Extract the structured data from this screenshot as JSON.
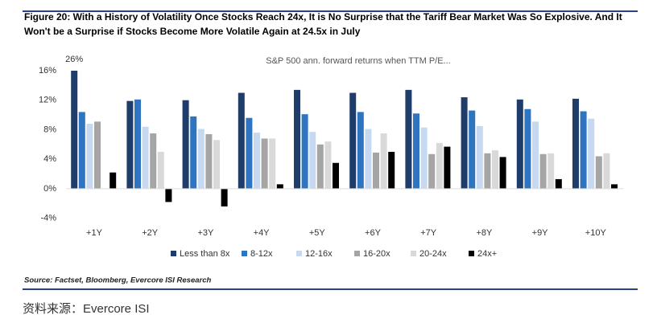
{
  "chart_data": {
    "type": "bar",
    "title": "Figure 20:  With a History of Volatility Once Stocks Reach 24x, It is No Surprise that the Tariff Bear Market Was So Explosive. And It",
    "title_line2": "Won't be a Surprise if Stocks Become More Volatile Again at 24.5x in July",
    "subtitle": "S&P 500 ann. forward returns when TTM P/E...",
    "source": "Source: Factset, Bloomberg, Evercore ISI Research",
    "caption": "资料来源：Evercore ISI",
    "categories": [
      "+1Y",
      "+2Y",
      "+3Y",
      "+4Y",
      "+5Y",
      "+6Y",
      "+7Y",
      "+8Y",
      "+9Y",
      "+10Y"
    ],
    "series": [
      {
        "name": "Less than 8x",
        "color": "#1f3d6b",
        "values": [
          26,
          11.9,
          12.0,
          13.0,
          13.4,
          13.0,
          13.4,
          12.4,
          12.1,
          12.2
        ],
        "value_labels": [
          "26%",
          null,
          null,
          null,
          null,
          null,
          null,
          null,
          null,
          null
        ]
      },
      {
        "name": "8-12x",
        "color": "#2f74c0",
        "values": [
          10.4,
          12.1,
          9.8,
          9.6,
          10.1,
          10.4,
          10.2,
          10.6,
          10.8,
          10.5
        ]
      },
      {
        "name": "12-16x",
        "color": "#c6d9f0",
        "values": [
          8.8,
          8.4,
          8.1,
          7.6,
          7.7,
          8.1,
          8.3,
          8.5,
          9.1,
          9.5
        ]
      },
      {
        "name": "16-20x",
        "color": "#a5a5a5",
        "values": [
          9.1,
          7.5,
          7.4,
          6.8,
          6.0,
          4.9,
          4.7,
          4.8,
          4.7,
          4.4
        ]
      },
      {
        "name": "20-24x",
        "color": "#d9d9d9",
        "values": [
          null,
          5.0,
          6.6,
          6.8,
          6.4,
          7.5,
          6.2,
          5.2,
          4.8,
          4.8
        ]
      },
      {
        "name": "24x+",
        "color": "#000000",
        "values": [
          2.2,
          -1.8,
          -2.4,
          0.6,
          3.5,
          5.0,
          5.7,
          4.3,
          1.3,
          0.6
        ]
      }
    ],
    "ylim": [
      -4,
      16
    ],
    "yticks": [
      {
        "value": -4,
        "label": "-4%"
      },
      {
        "value": 0,
        "label": "0%"
      },
      {
        "value": 4,
        "label": "4%"
      },
      {
        "value": 8,
        "label": "8%"
      },
      {
        "value": 12,
        "label": "12%"
      },
      {
        "value": 16,
        "label": "16%"
      }
    ],
    "legend": "bottom"
  }
}
